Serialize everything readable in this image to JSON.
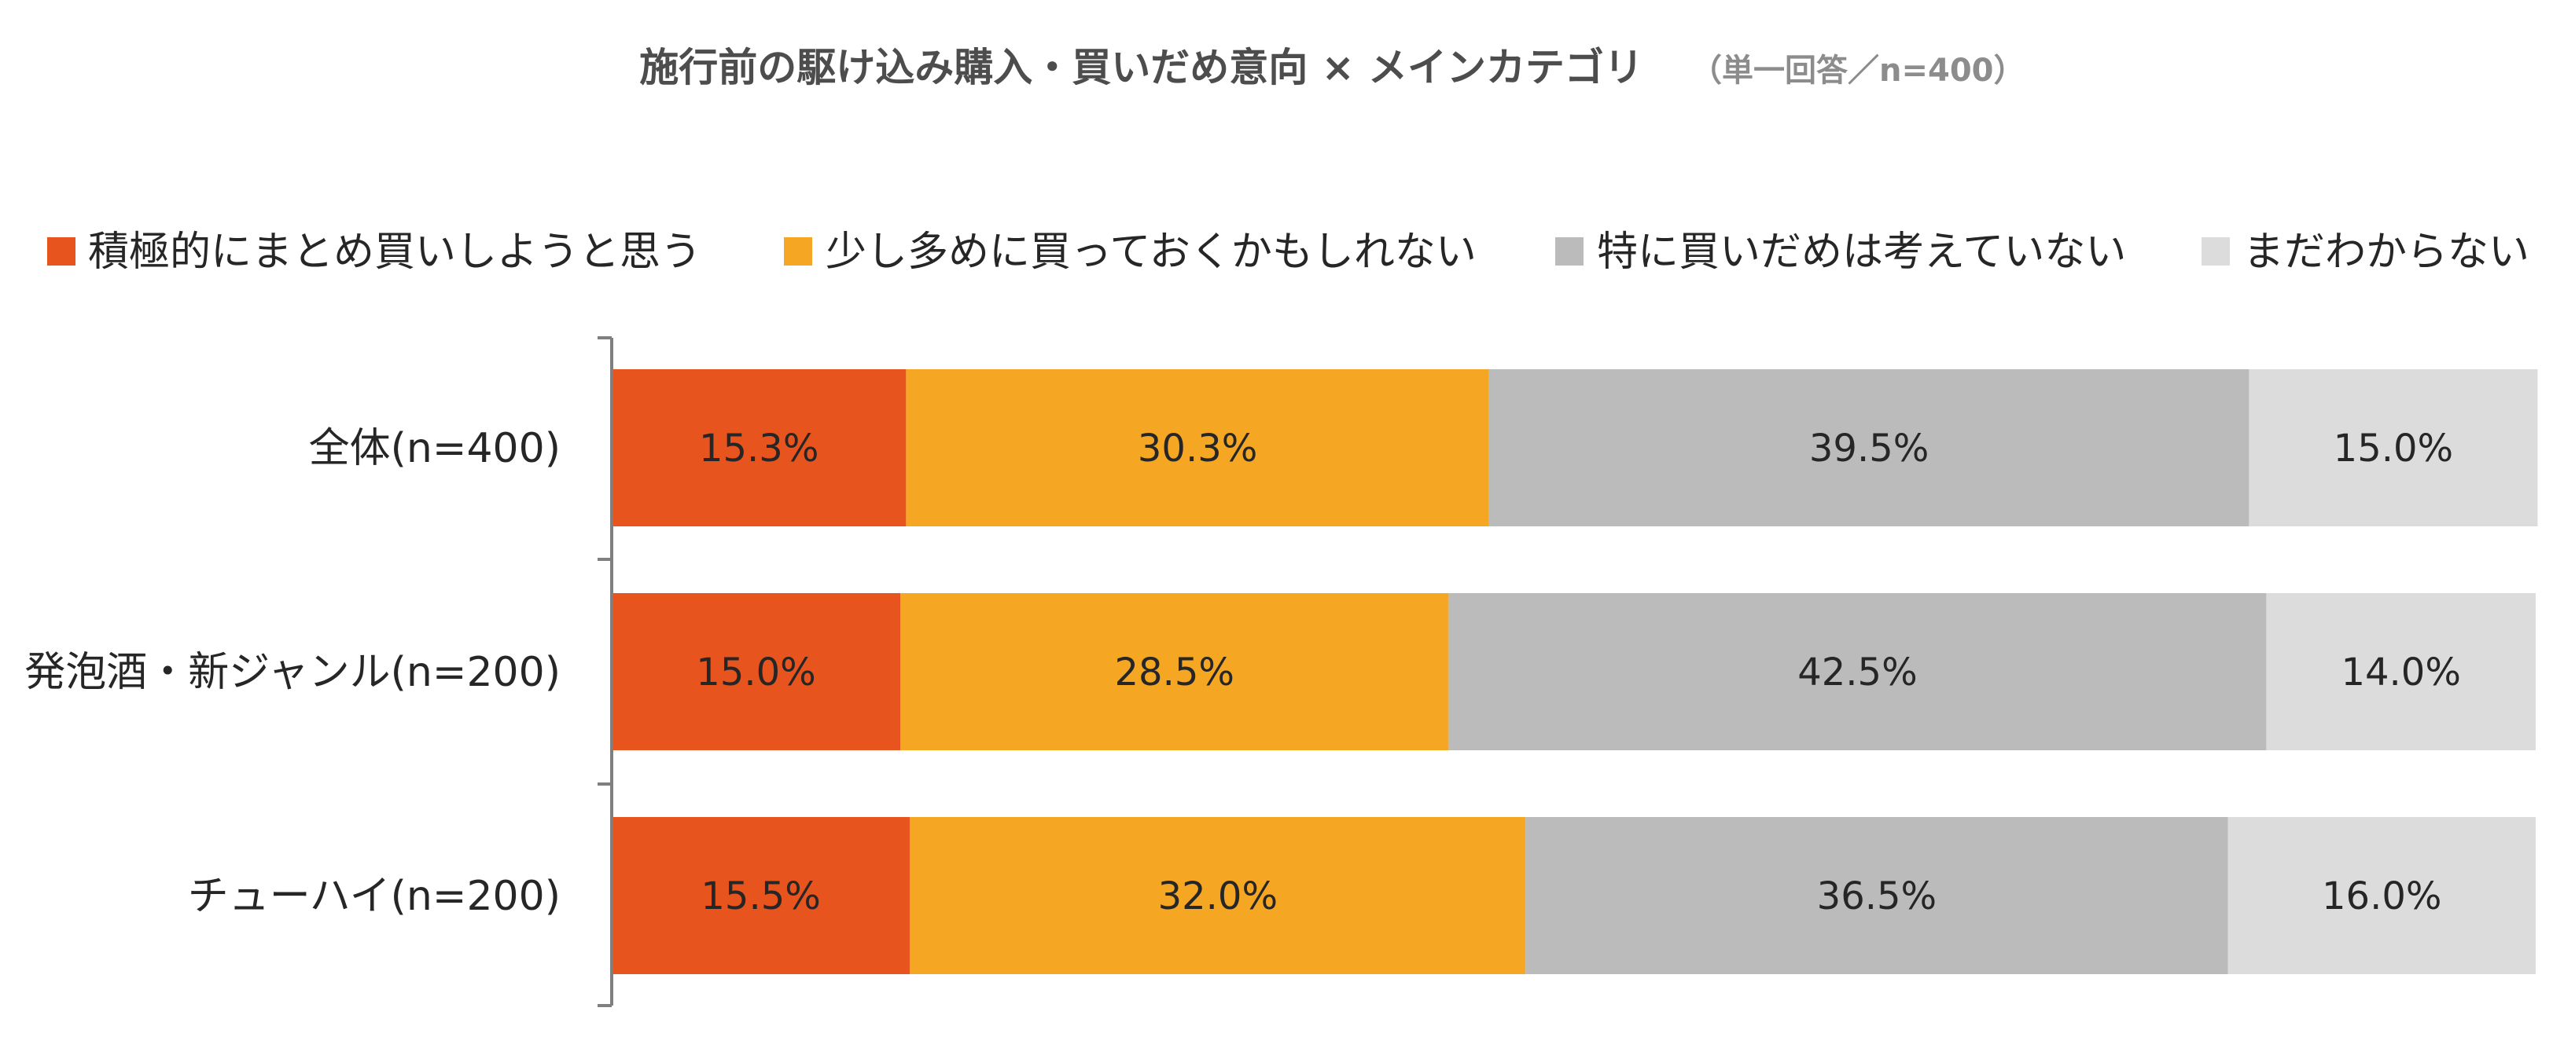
{
  "chart_data": {
    "type": "bar",
    "orientation": "horizontal",
    "stacked": true,
    "title": "施行前の駆け込み購入・買いだめ意向 × メインカテゴリ",
    "subtitle": "（単一回答／n=400）",
    "categories": [
      "全体(n=400)",
      "発泡酒・新ジャンル(n=200)",
      "チューハイ(n=200)"
    ],
    "series": [
      {
        "name": "積極的にまとめ買いしようと思う",
        "color": "#E8541E",
        "values": [
          15.3,
          15.0,
          15.5
        ],
        "labels": [
          "15.3%",
          "15.0%",
          "15.5%"
        ]
      },
      {
        "name": "少し多めに買っておくかもしれない",
        "color": "#F5A623",
        "values": [
          30.3,
          28.5,
          32.0
        ],
        "labels": [
          "30.3%",
          "28.5%",
          "32.0%"
        ]
      },
      {
        "name": "特に買いだめは考えていない",
        "color": "#BBBBBB",
        "values": [
          39.5,
          42.5,
          36.5
        ],
        "labels": [
          "39.5%",
          "42.5%",
          "36.5%"
        ]
      },
      {
        "name": "まだわからない",
        "color": "#DCDCDC",
        "values": [
          15.0,
          14.0,
          16.0
        ],
        "labels": [
          "15.0%",
          "14.0%",
          "16.0%"
        ]
      }
    ],
    "xlim": [
      0,
      100
    ],
    "legend_position": "top",
    "grid": false
  }
}
